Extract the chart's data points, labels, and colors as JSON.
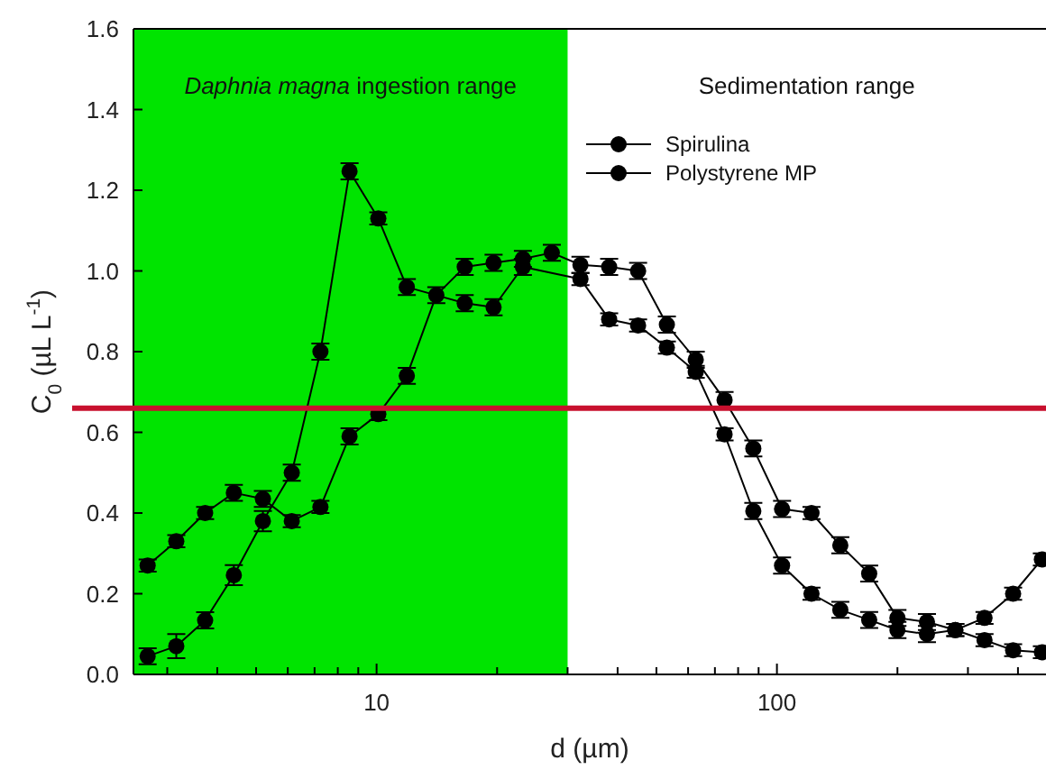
{
  "chart_data": {
    "type": "line",
    "xlabel": "d (µm)",
    "ylabel": "C$_{0}$ (µL L$^{-1}$)",
    "log": "x",
    "grid": false,
    "marker": "circle",
    "line_style": "solid",
    "legend": "top right",
    "x": [
      2.68,
      3.16,
      3.73,
      4.4,
      5.2,
      6.14,
      7.24,
      8.56,
      10.1,
      11.9,
      14.1,
      16.6,
      19.6,
      23.2,
      27.4,
      32.3,
      38.1,
      45,
      53.1,
      62.7,
      74,
      87.3,
      103,
      122,
      144,
      170,
      200,
      237,
      279,
      330,
      389,
      459
    ],
    "xlim": [
      2.47,
      470
    ],
    "xticks": [
      {
        "value": 3,
        "label": null
      },
      {
        "value": 4,
        "label": null
      },
      {
        "value": 5,
        "label": null
      },
      {
        "value": 6,
        "label": null
      },
      {
        "value": 7,
        "label": null
      },
      {
        "value": 8,
        "label": null
      },
      {
        "value": 9,
        "label": null
      },
      10,
      {
        "value": 20,
        "label": null
      },
      {
        "value": 30,
        "label": null
      },
      {
        "value": 40,
        "label": null
      },
      {
        "value": 50,
        "label": null
      },
      {
        "value": 60,
        "label": null
      },
      {
        "value": 70,
        "label": null
      },
      {
        "value": 80,
        "label": null
      },
      {
        "value": 90,
        "label": null
      },
      100,
      {
        "value": 200,
        "label": null
      },
      {
        "value": 300,
        "label": null
      },
      {
        "value": 400,
        "label": null
      }
    ],
    "ylim": [
      0,
      1.6
    ],
    "yticks": [
      {
        "value": 0,
        "label": "0.0"
      },
      {
        "value": 0.2,
        "label": "0.2"
      },
      {
        "value": 0.4,
        "label": "0.4"
      },
      {
        "value": 0.6,
        "label": "0.6"
      },
      {
        "value": 0.8,
        "label": "0.8"
      },
      {
        "value": 1,
        "label": "1.0"
      },
      {
        "value": 1.2,
        "label": "1.2"
      },
      {
        "value": 1.4,
        "label": "1.4"
      },
      {
        "value": 1.6,
        "label": "1.6"
      }
    ],
    "series": [
      {
        "name": "Spirulina",
        "color": "#000000",
        "values": [
          0.27,
          0.33,
          0.4,
          0.45,
          0.435,
          0.38,
          0.415,
          0.59,
          0.645,
          0.74,
          0.94,
          1.01,
          1.02,
          1.03,
          1.045,
          1.015,
          1.01,
          1,
          0.867,
          0.78,
          0.68,
          0.56,
          0.41,
          0.4,
          0.32,
          0.25,
          0.14,
          0.13,
          0.11,
          0.14,
          0.2,
          0.285
        ],
        "errors": [
          0.015,
          0.015,
          0.015,
          0.02,
          0.02,
          0.015,
          0.015,
          0.02,
          0.015,
          0.02,
          0.02,
          0.02,
          0.02,
          0.02,
          0.02,
          0.02,
          0.02,
          0.02,
          0.02,
          0.02,
          0.02,
          0.02,
          0.02,
          0.015,
          0.02,
          0.02,
          0.02,
          0.02,
          0.015,
          0.015,
          0.015,
          0.015
        ]
      },
      {
        "name": "Polystyrene MP",
        "color": "#000000",
        "values": [
          0.045,
          0.07,
          0.134,
          0.246,
          0.38,
          0.5,
          0.8,
          1.247,
          1.13,
          0.96,
          null,
          0.92,
          0.91,
          1.01,
          null,
          0.98,
          0.88,
          0.865,
          0.81,
          0.75,
          0.595,
          0.405,
          0.27,
          0.2,
          0.16,
          0.135,
          0.11,
          0.1,
          0.11,
          0.085,
          0.06,
          0.055
        ],
        "errors": [
          0.02,
          0.03,
          0.02,
          0.025,
          0.025,
          0.02,
          0.02,
          0.02,
          0.015,
          0.02,
          null,
          0.02,
          0.02,
          0.02,
          null,
          0.015,
          0.015,
          0.015,
          0.015,
          0.015,
          0.015,
          0.02,
          0.02,
          0.015,
          0.02,
          0.02,
          0.02,
          0.02,
          0.015,
          0.015,
          0.015,
          0.015
        ]
      }
    ],
    "bands": [
      {
        "axis": "x",
        "from": 2.47,
        "to": 30,
        "label": "Daphnia magna ingestion range",
        "color": "#00e400"
      }
    ],
    "ref_lines": [
      {
        "axis": "y",
        "value": 0.66,
        "color": "#c8102e"
      }
    ],
    "annotations": [
      "Sedimentation range"
    ]
  }
}
